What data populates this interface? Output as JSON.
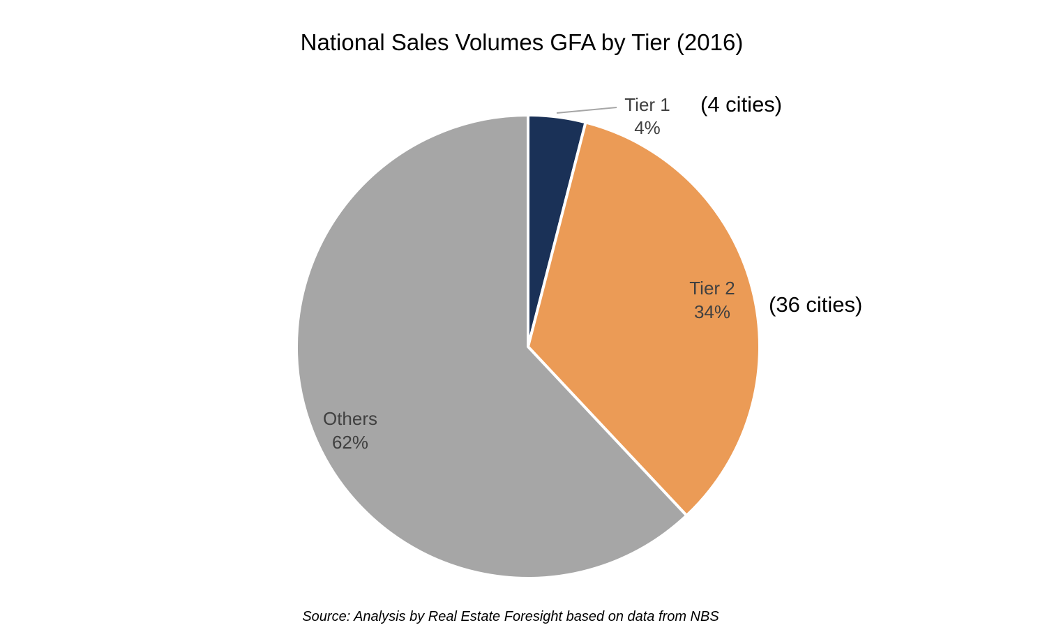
{
  "chart_data": {
    "type": "pie",
    "title": "National Sales Volumes GFA by Tier (2016)",
    "start_angle": "12 o'clock",
    "direction": "clockwise",
    "slices": [
      {
        "label": "Tier 1",
        "value": 4,
        "value_label": "4%",
        "note": "(4 cities)",
        "color": "#1a3157"
      },
      {
        "label": "Tier 2",
        "value": 34,
        "value_label": "34%",
        "note": "(36 cities)",
        "color": "#eb9b56"
      },
      {
        "label": "Others",
        "value": 62,
        "value_label": "62%",
        "note": "",
        "color": "#a6a6a6"
      }
    ],
    "source": "Source: Analysis by Real Estate Foresight based on data from NBS"
  }
}
